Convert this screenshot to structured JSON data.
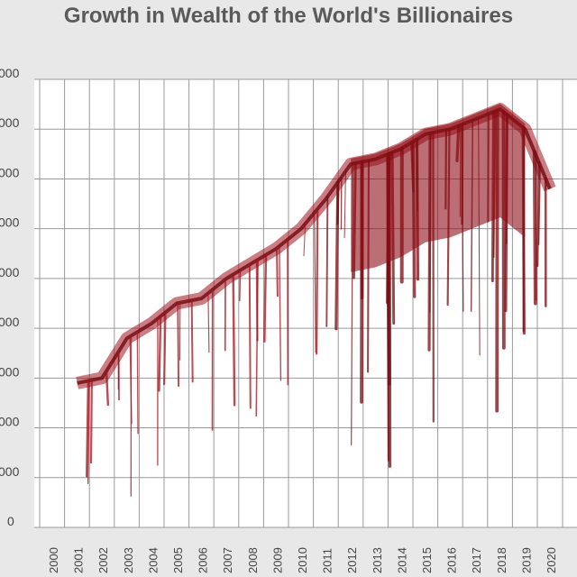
{
  "chart_data": {
    "type": "line",
    "title": "Growth in Wealth of the World's Billionaires",
    "xlabel": "",
    "ylabel": "",
    "x": [
      "2000",
      "2001",
      "2002",
      "2003",
      "2004",
      "2005",
      "2006",
      "2007",
      "2008",
      "2009",
      "2010",
      "2011",
      "2012",
      "2013",
      "2014",
      "2015",
      "2016",
      "2017",
      "2018",
      "2019",
      "2020"
    ],
    "y_tick_labels": [
      "0",
      "000",
      "000",
      "000",
      "000",
      "000",
      "000",
      "000",
      "000",
      "000"
    ],
    "series": [
      {
        "values": [
          null,
          2.9,
          3.0,
          3.8,
          4.1,
          4.5,
          4.6,
          5.0,
          5.3,
          5.6,
          6.0,
          6.6,
          7.3,
          7.4,
          7.6,
          7.9,
          8.0,
          8.2,
          8.4,
          8.0,
          6.8
        ]
      }
    ],
    "ylim": [
      0,
      9
    ],
    "grid": true,
    "colors": {
      "series": "#a3121b",
      "grid": "#9a9a9a",
      "background": "#ffffff"
    }
  }
}
